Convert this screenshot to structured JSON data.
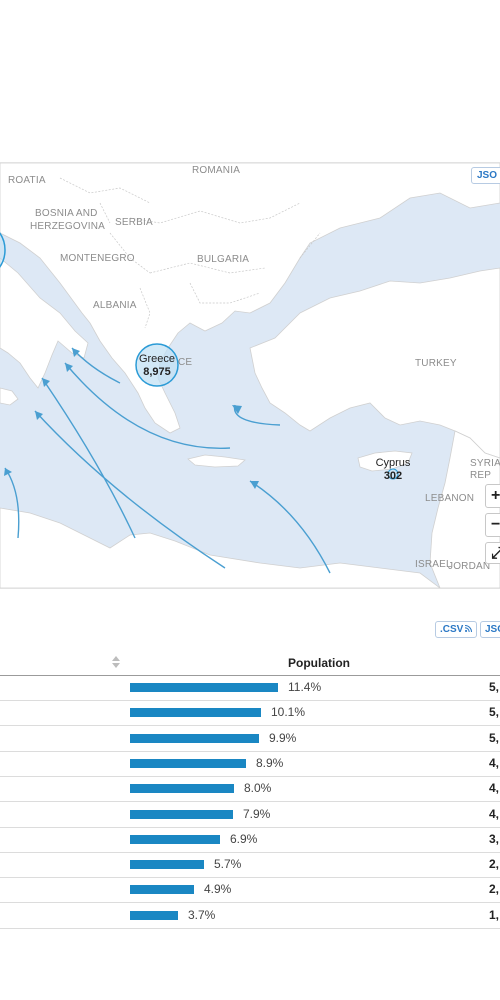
{
  "map": {
    "json_label": "JSO",
    "country_labels": [
      "ROATIA",
      "ROMANIA",
      "BOSNIA AND",
      "HERZEGOVINA",
      "SERBIA",
      "MONTENEGRO",
      "BULGARIA",
      "ALBANIA",
      "CE",
      "TURKEY",
      "SYRIA",
      "REP",
      "LEBANON",
      "ISRAEL",
      "JORDAN"
    ],
    "bubbles": [
      {
        "name": "Greece",
        "value": "8,975"
      },
      {
        "name": "Cyprus",
        "value": "302"
      }
    ],
    "zoom_in_label": "+",
    "zoom_out_label": "−",
    "zoom_fit_label": "⤢"
  },
  "export": {
    "csv_label": ".CSV",
    "json_label": "JSO"
  },
  "table": {
    "population_header": "Population"
  },
  "chart_data": {
    "type": "bar",
    "orientation": "horizontal",
    "series": [
      {
        "name": "Population",
        "values": [
          11.4,
          10.1,
          9.9,
          8.9,
          8.0,
          7.9,
          6.9,
          5.7,
          4.9,
          3.7
        ],
        "labels": [
          "11.4%",
          "10.1%",
          "9.9%",
          "8.9%",
          "8.0%",
          "7.9%",
          "6.9%",
          "5.7%",
          "4.9%",
          "3.7%"
        ]
      }
    ],
    "value_column_visible": [
      "5,",
      "5,",
      "5,",
      "4,",
      "4,",
      "4,",
      "3,",
      "2,",
      "2,",
      "1,"
    ],
    "xlim": [
      0,
      11.4
    ],
    "colors": {
      "bar": "#1a87c3",
      "bubble": "#2b9bd6",
      "water": "#dde8f5",
      "land": "#ffffff"
    }
  }
}
